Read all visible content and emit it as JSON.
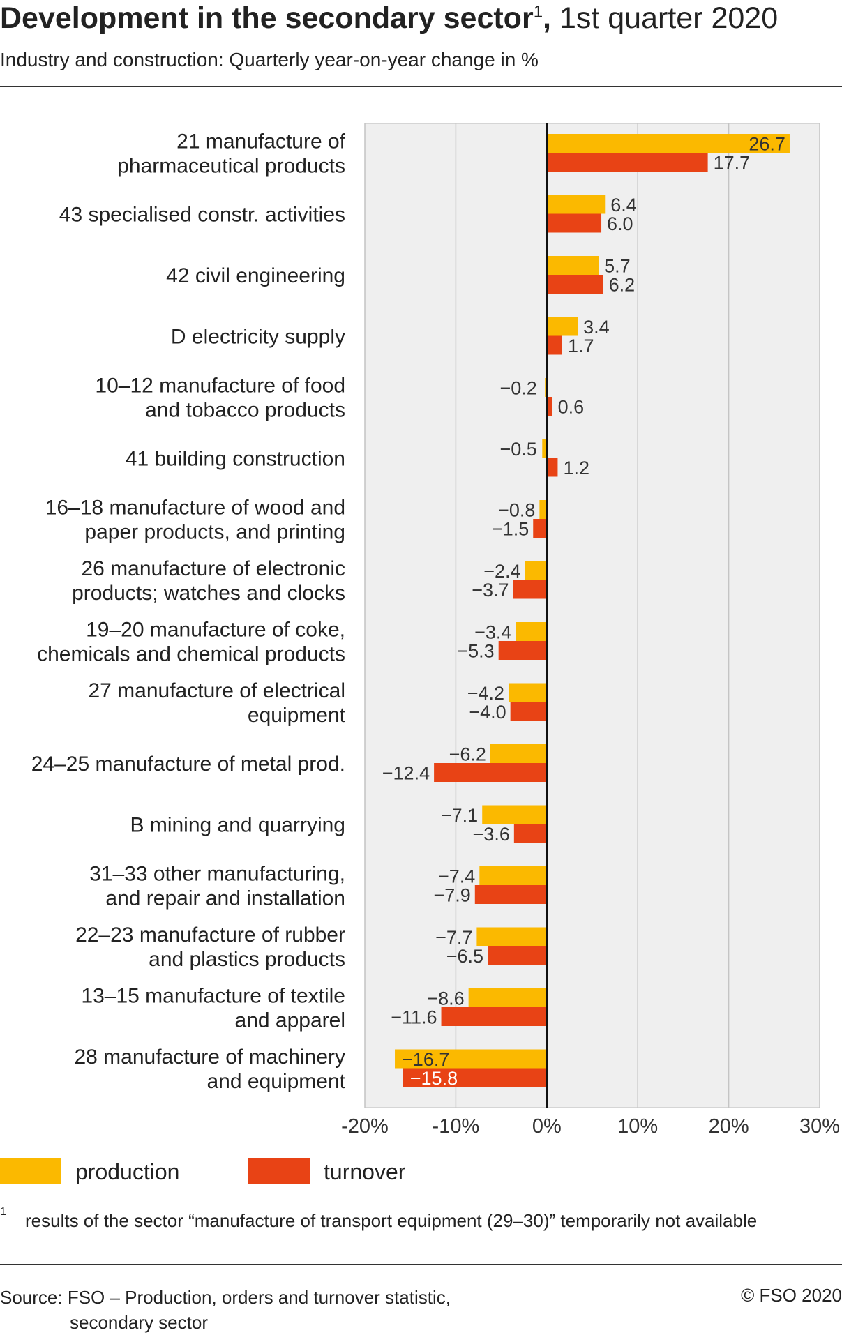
{
  "header": {
    "title_bold": "Development in the secondary sector",
    "title_footnote_mark": "1",
    "title_comma": ",",
    "title_rest": " 1st quarter 2020",
    "subtitle": "Industry and construction: Quarterly year-on-year change in %"
  },
  "chart_data": {
    "type": "bar",
    "orientation": "horizontal",
    "categories": [
      [
        "21 manufacture of",
        "pharmaceutical products"
      ],
      [
        "43 specialised constr. activities"
      ],
      [
        "42 civil engineering"
      ],
      [
        "D electricity supply"
      ],
      [
        "10–12 manufacture of food",
        "and tobacco products"
      ],
      [
        "41 building construction"
      ],
      [
        "16–18 manufacture of wood and",
        "paper products, and printing"
      ],
      [
        "26  manufacture of electronic",
        "products; watches and clocks"
      ],
      [
        "19–20 manufacture of coke,",
        "chemicals and chemical products"
      ],
      [
        "27 manufacture of electrical",
        "equipment"
      ],
      [
        "24–25 manufacture of metal prod."
      ],
      [
        "B mining and quarrying"
      ],
      [
        "31–33 other manufacturing,",
        "and repair and installation"
      ],
      [
        "22–23  manufacture of rubber",
        "and plastics products"
      ],
      [
        "13–15 manufacture of textile",
        "and apparel"
      ],
      [
        "28 manufacture of machinery",
        "and equipment"
      ]
    ],
    "series": [
      {
        "name": "production",
        "color": "#fbb900",
        "values": [
          26.7,
          6.4,
          5.7,
          3.4,
          -0.2,
          -0.5,
          -0.8,
          -2.4,
          -3.4,
          -4.2,
          -6.2,
          -7.1,
          -7.4,
          -7.7,
          -8.6,
          -16.7
        ],
        "labels": [
          "26.7",
          "6.4",
          "5.7",
          "3.4",
          "−0.2",
          "−0.5",
          "−0.8",
          "−2.4",
          "−3.4",
          "−4.2",
          "−6.2",
          "−7.1",
          "−7.4",
          "−7.7",
          "−8.6",
          "−16.7"
        ]
      },
      {
        "name": "turnover",
        "color": "#e84315",
        "values": [
          17.7,
          6.0,
          6.2,
          1.7,
          0.6,
          1.2,
          -1.5,
          -3.7,
          -5.3,
          -4.0,
          -12.4,
          -3.6,
          -7.9,
          -6.5,
          -11.6,
          -15.8
        ],
        "labels": [
          "17.7",
          "6.0",
          "6.2",
          "1.7",
          "0.6",
          "1.2",
          "−1.5",
          "−3.7",
          "−5.3",
          "−4.0",
          "−12.4",
          "−3.6",
          "−7.9",
          "−6.5",
          "−11.6",
          "−15.8"
        ]
      }
    ],
    "xlim": [
      -20,
      30
    ],
    "xticks": [
      -20,
      -10,
      0,
      10,
      20,
      30
    ],
    "xtick_labels": [
      "-20%",
      "-10%",
      "0%",
      "10%",
      "20%",
      "30%"
    ],
    "grid": true,
    "legend_position": "bottom-left"
  },
  "legend": {
    "production": "production",
    "turnover": "turnover"
  },
  "footnote": {
    "mark": "1",
    "text": "results of the sector “manufacture of transport equipment (29–30)” temporarily not available"
  },
  "source": {
    "line1": "Source: FSO – Production, orders and turnover statistic,",
    "line2": "secondary sector"
  },
  "copyright": "© FSO 2020"
}
